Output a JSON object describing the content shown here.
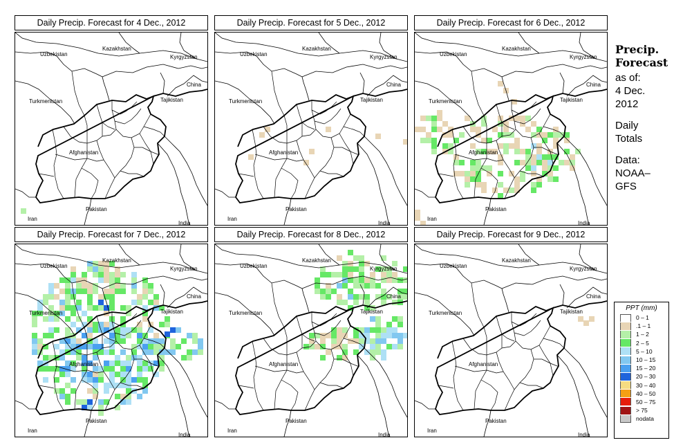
{
  "panels": [
    {
      "title": "Daily Precip. Forecast for  4 Dec., 2012"
    },
    {
      "title": "Daily Precip. Forecast for  5 Dec., 2012"
    },
    {
      "title": "Daily Precip. Forecast for  6 Dec., 2012"
    },
    {
      "title": "Daily Precip. Forecast for  7 Dec., 2012"
    },
    {
      "title": "Daily Precip. Forecast for  8 Dec., 2012"
    },
    {
      "title": "Daily Precip. Forecast for  9 Dec., 2012"
    }
  ],
  "map_labels": {
    "uzbekistan": "Uzbekistan",
    "kazakhstan": "Kazakhstan",
    "kyrgyzstan": "Kyrgyzstan",
    "china": "China",
    "turkmenistan": "Turkmenistan",
    "tajikistan": "Tajikistan",
    "afghanistan": "Afghanistan",
    "pakistan": "Pakistan",
    "iran": "Iran",
    "india": "India"
  },
  "info": {
    "heading1": "Precip.",
    "heading2": "Forecast",
    "asof": "as of:",
    "date1": "4 Dec.",
    "date2": "2012",
    "daily": "Daily",
    "totals": "Totals",
    "data": "Data:",
    "source1": "NOAA–",
    "source2": "GFS"
  },
  "legend": {
    "title": "PPT (mm)",
    "items": [
      {
        "label": "0 – 1",
        "color": "#ffffff"
      },
      {
        "label": ".1 – 1",
        "color": "#e8d5b5"
      },
      {
        "label": "1 – 2",
        "color": "#b4f0a8"
      },
      {
        "label": "2 – 5",
        "color": "#66e866"
      },
      {
        "label": "5 – 10",
        "color": "#aee0f5"
      },
      {
        "label": "10 – 15",
        "color": "#82c8f0"
      },
      {
        "label": "15 – 20",
        "color": "#4aa0f0"
      },
      {
        "label": "20 – 30",
        "color": "#1e64dc"
      },
      {
        "label": "30 – 40",
        "color": "#f5dc82"
      },
      {
        "label": "40 – 50",
        "color": "#f5a014"
      },
      {
        "label": "50 – 75",
        "color": "#e61e0a"
      },
      {
        "label": "> 75",
        "color": "#a01414"
      },
      {
        "label": "nodata",
        "color": "#c8c8c8"
      }
    ]
  }
}
